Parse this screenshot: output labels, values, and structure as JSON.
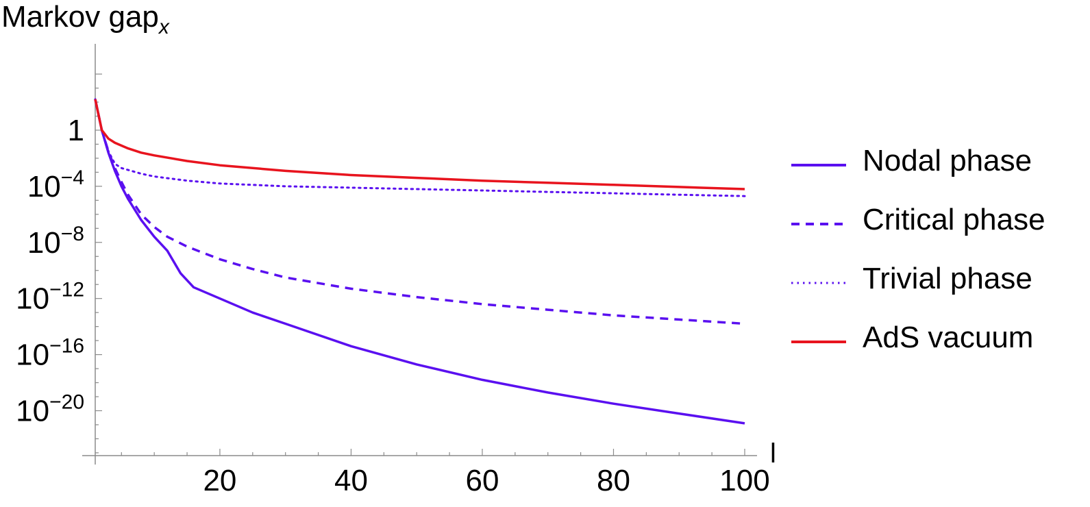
{
  "chart_data": {
    "type": "line",
    "ylabel_main": "Markov gap",
    "ylabel_sub": "x",
    "xlabel": "l",
    "x_scale": "linear",
    "y_scale": "log10",
    "xlim": [
      1,
      100
    ],
    "ylim": [
      -23.2,
      4.2
    ],
    "x_ticks": [
      20,
      40,
      60,
      80,
      100
    ],
    "y_ticks": [
      {
        "exp": 0,
        "base": "1",
        "sup": ""
      },
      {
        "exp": -4,
        "base": "10",
        "sup": "−4"
      },
      {
        "exp": -8,
        "base": "10",
        "sup": "−8"
      },
      {
        "exp": -12,
        "base": "10",
        "sup": "−12"
      },
      {
        "exp": -16,
        "base": "10",
        "sup": "−16"
      },
      {
        "exp": -20,
        "base": "10",
        "sup": "−20"
      }
    ],
    "legend_position": "right",
    "series": [
      {
        "name": "Nodal phase",
        "color": "#5a10f0",
        "style": "solid",
        "x": [
          1,
          2,
          3,
          4,
          5,
          6,
          8,
          10,
          12,
          14,
          16,
          20,
          25,
          30,
          40,
          50,
          60,
          70,
          80,
          90,
          100
        ],
        "log10": [
          2.2,
          0.0,
          -1.6,
          -2.9,
          -4.0,
          -4.9,
          -6.4,
          -7.6,
          -8.6,
          -10.2,
          -11.2,
          -12.0,
          -13.0,
          -13.8,
          -15.4,
          -16.7,
          -17.8,
          -18.7,
          -19.5,
          -20.2,
          -20.9
        ]
      },
      {
        "name": "Critical phase",
        "color": "#5a10f0",
        "style": "dashed",
        "x": [
          1,
          2,
          3,
          4,
          5,
          6,
          8,
          10,
          12,
          15,
          20,
          25,
          30,
          40,
          50,
          60,
          70,
          80,
          90,
          100
        ],
        "log10": [
          2.2,
          0.0,
          -1.5,
          -2.7,
          -3.7,
          -4.6,
          -6.0,
          -6.9,
          -7.6,
          -8.3,
          -9.2,
          -9.9,
          -10.5,
          -11.3,
          -11.9,
          -12.4,
          -12.8,
          -13.2,
          -13.5,
          -13.8
        ]
      },
      {
        "name": "Trivial phase",
        "color": "#5a10f0",
        "style": "dotted",
        "x": [
          1,
          2,
          3,
          4,
          5,
          8,
          10,
          15,
          20,
          30,
          40,
          50,
          60,
          70,
          80,
          90,
          100
        ],
        "log10": [
          2.2,
          0.0,
          -1.5,
          -2.4,
          -2.7,
          -3.1,
          -3.3,
          -3.6,
          -3.8,
          -4.0,
          -4.1,
          -4.2,
          -4.3,
          -4.4,
          -4.5,
          -4.6,
          -4.7
        ]
      },
      {
        "name": "AdS vacuum",
        "color": "#e8141e",
        "style": "solid",
        "x": [
          1,
          2,
          3,
          4,
          5,
          6,
          8,
          10,
          15,
          20,
          30,
          40,
          50,
          60,
          70,
          80,
          90,
          100
        ],
        "log10": [
          2.2,
          0.0,
          -0.6,
          -0.9,
          -1.1,
          -1.3,
          -1.6,
          -1.8,
          -2.2,
          -2.5,
          -2.9,
          -3.2,
          -3.4,
          -3.6,
          -3.75,
          -3.9,
          -4.05,
          -4.2
        ]
      }
    ]
  }
}
